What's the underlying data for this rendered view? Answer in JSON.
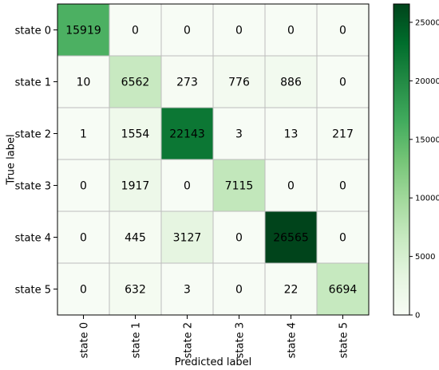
{
  "chart_data": {
    "type": "heatmap",
    "title": "",
    "xlabel": "Predicted label",
    "ylabel": "True label",
    "x_categories": [
      "state 0",
      "state 1",
      "state 2",
      "state 3",
      "state 4",
      "state 5"
    ],
    "y_categories": [
      "state 0",
      "state 1",
      "state 2",
      "state 3",
      "state 4",
      "state 5"
    ],
    "values": [
      [
        15919,
        0,
        0,
        0,
        0,
        0
      ],
      [
        10,
        6562,
        273,
        776,
        886,
        0
      ],
      [
        1,
        1554,
        22143,
        3,
        13,
        217
      ],
      [
        0,
        1917,
        0,
        7115,
        0,
        0
      ],
      [
        0,
        445,
        3127,
        0,
        26565,
        0
      ],
      [
        0,
        632,
        3,
        0,
        22,
        6694
      ]
    ],
    "colormap": "Greens",
    "colorbar": {
      "range": [
        0,
        26565
      ],
      "ticks": [
        0,
        5000,
        10000,
        15000,
        20000,
        25000
      ]
    },
    "grid": true
  }
}
